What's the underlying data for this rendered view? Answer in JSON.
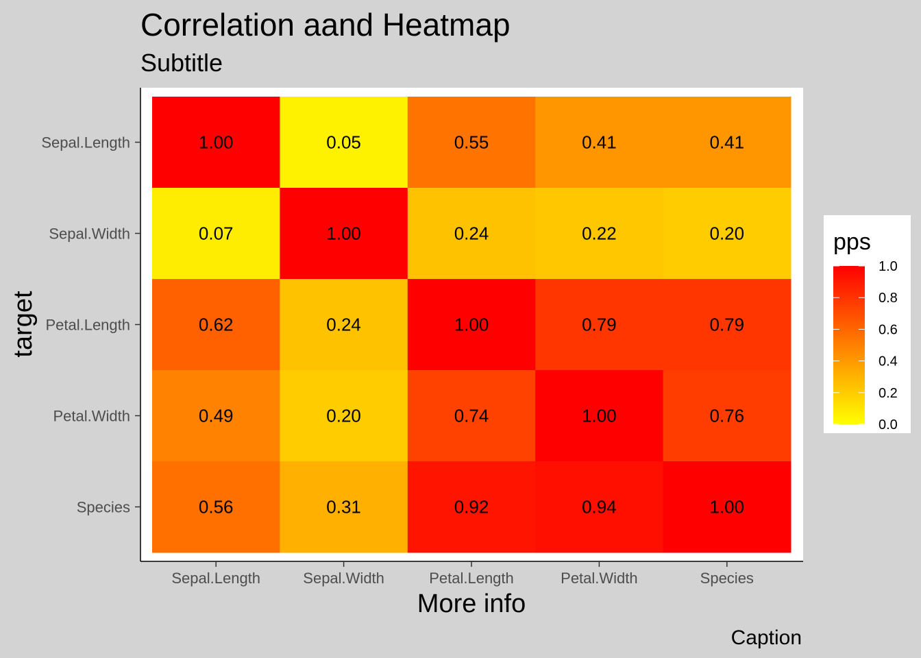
{
  "chart_data": {
    "type": "heatmap",
    "title": "Correlation aand Heatmap",
    "subtitle": "Subtitle",
    "xlabel": "More info",
    "ylabel": "target",
    "caption": "Caption",
    "x_categories": [
      "Sepal.Length",
      "Sepal.Width",
      "Petal.Length",
      "Petal.Width",
      "Species"
    ],
    "y_categories": [
      "Sepal.Length",
      "Sepal.Width",
      "Petal.Length",
      "Petal.Width",
      "Species"
    ],
    "values": [
      [
        1.0,
        0.05,
        0.55,
        0.41,
        0.41
      ],
      [
        0.07,
        1.0,
        0.24,
        0.22,
        0.2
      ],
      [
        0.62,
        0.24,
        1.0,
        0.79,
        0.79
      ],
      [
        0.49,
        0.2,
        0.74,
        1.0,
        0.76
      ],
      [
        0.56,
        0.31,
        0.92,
        0.94,
        1.0
      ]
    ],
    "labels": [
      [
        "1.00",
        "0.05",
        "0.55",
        "0.41",
        "0.41"
      ],
      [
        "0.07",
        "1.00",
        "0.24",
        "0.22",
        "0.20"
      ],
      [
        "0.62",
        "0.24",
        "1.00",
        "0.79",
        "0.79"
      ],
      [
        "0.49",
        "0.20",
        "0.74",
        "1.00",
        "0.76"
      ],
      [
        "0.56",
        "0.31",
        "0.92",
        "0.94",
        "1.00"
      ]
    ],
    "legend": {
      "title": "pps",
      "placement": "right",
      "range": [
        0,
        1
      ],
      "ticks": [
        "0.0",
        "0.2",
        "0.4",
        "0.6",
        "0.8",
        "1.0"
      ],
      "color_low": "#ffff00",
      "color_high": "#ff0000"
    },
    "colors": {
      "background": "#d3d3d3",
      "panel": "#ffffff"
    }
  }
}
